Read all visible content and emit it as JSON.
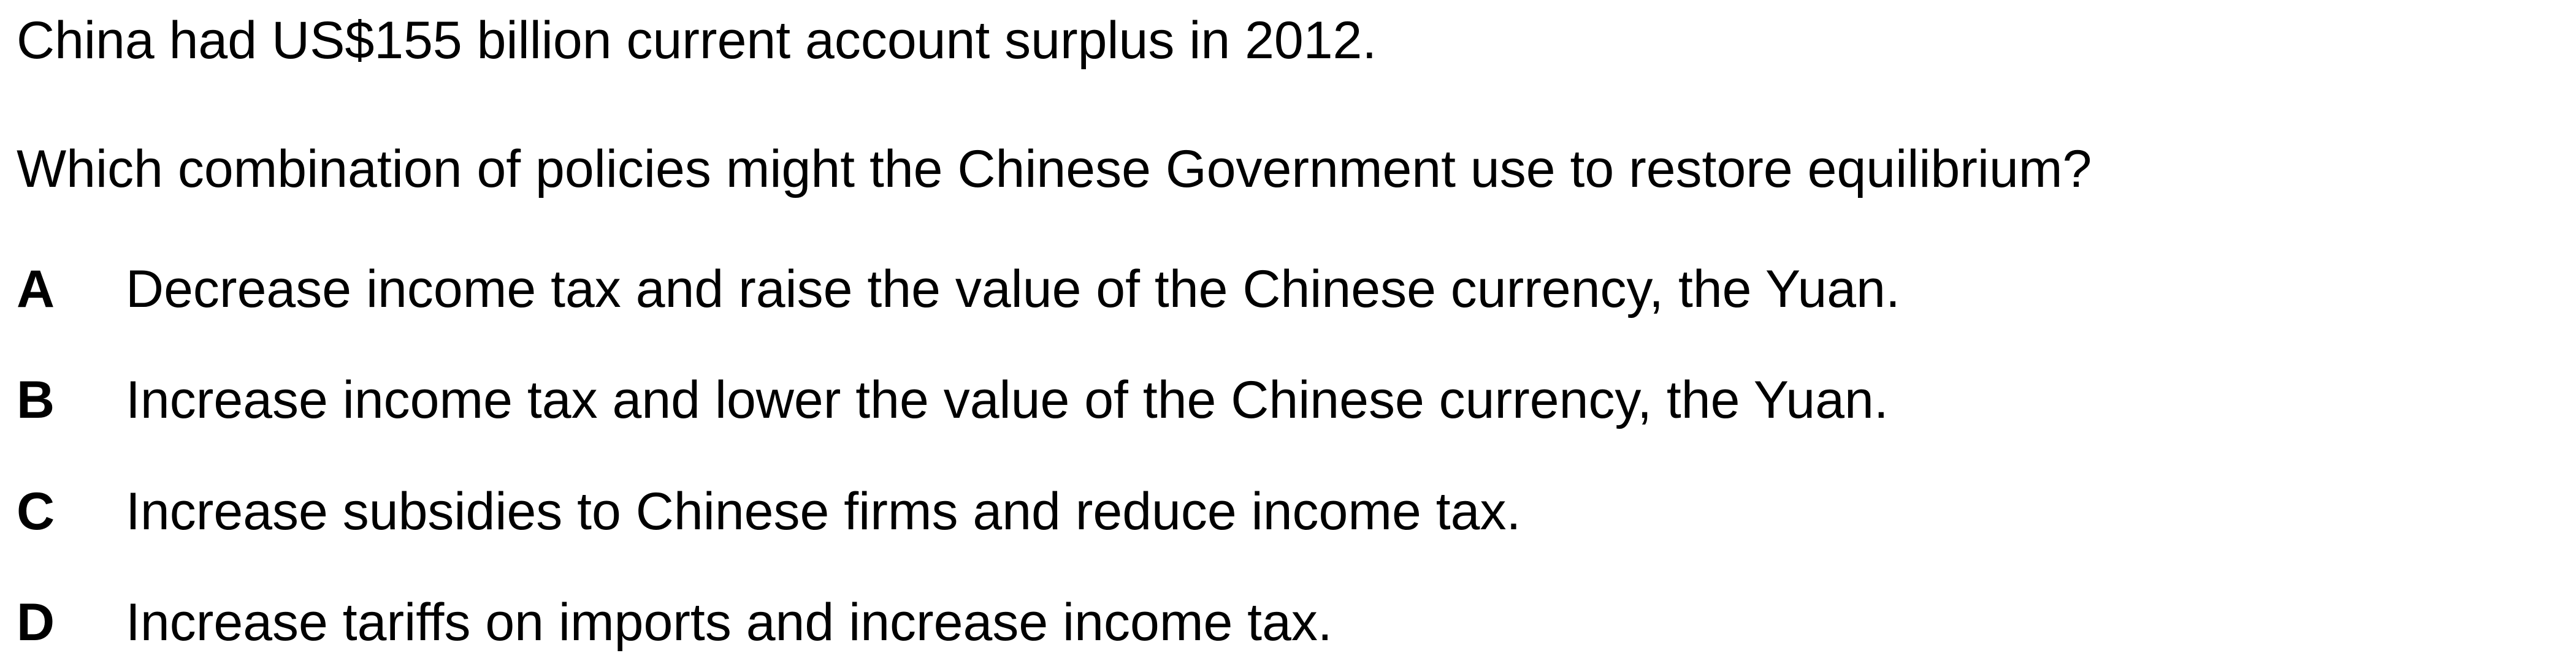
{
  "question": {
    "context": "China had US$155 billion current account surplus in 2012.",
    "prompt": "Which combination of policies might the Chinese Government use to restore equilibrium?",
    "options": [
      {
        "letter": "A",
        "text": "Decrease income tax and raise the value of the Chinese currency, the Yuan."
      },
      {
        "letter": "B",
        "text": "Increase income tax and lower the value of the Chinese currency, the Yuan."
      },
      {
        "letter": "C",
        "text": "Increase subsidies to Chinese firms and reduce income tax."
      },
      {
        "letter": "D",
        "text": "Increase tariffs on imports and increase income tax."
      }
    ]
  }
}
